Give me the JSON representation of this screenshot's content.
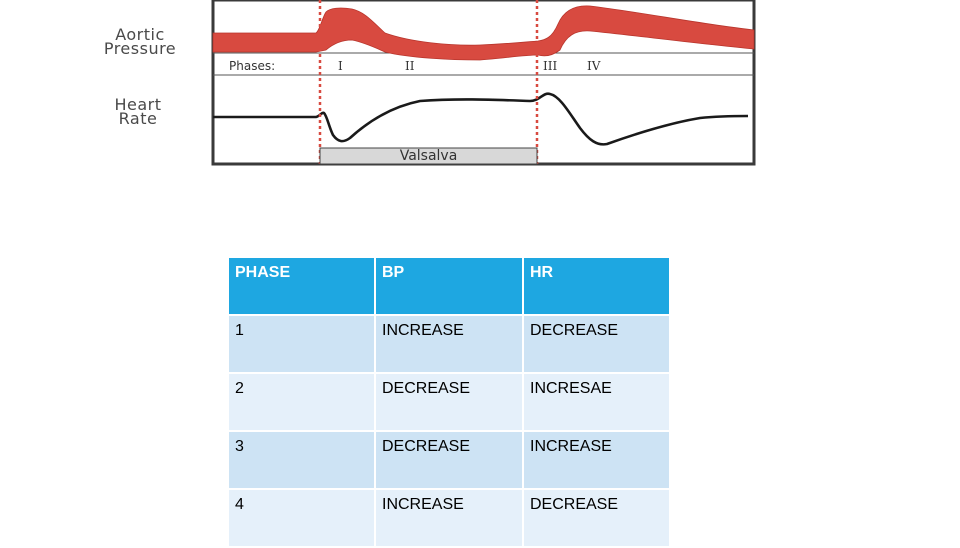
{
  "diagram": {
    "aortic_label_line1": "Aortic",
    "aortic_label_line2": "Pressure",
    "hr_label_line1": "Heart",
    "hr_label_line2": "Rate",
    "phases_title": "Phases:",
    "phase_numerals": [
      "I",
      "II",
      "III",
      "IV"
    ],
    "maneuver_label": "Valsalva",
    "colors": {
      "pressure_band": "#d84a40",
      "marker_line": "#d84a40",
      "trace": "#1a1a1a",
      "maneuver_bar": "#d8d8d8"
    }
  },
  "table": {
    "headers": [
      "PHASE",
      "BP",
      "HR"
    ],
    "rows": [
      [
        "1",
        "INCREASE",
        "DECREASE"
      ],
      [
        "2",
        "DECREASE",
        "INCRESAE"
      ],
      [
        "3",
        "DECREASE",
        "INCREASE"
      ],
      [
        "4",
        "INCREASE",
        "DECREASE"
      ]
    ],
    "colors": {
      "header": "#1ea7e1",
      "row_odd": "#cde3f4",
      "row_even": "#e5f0fa"
    }
  }
}
